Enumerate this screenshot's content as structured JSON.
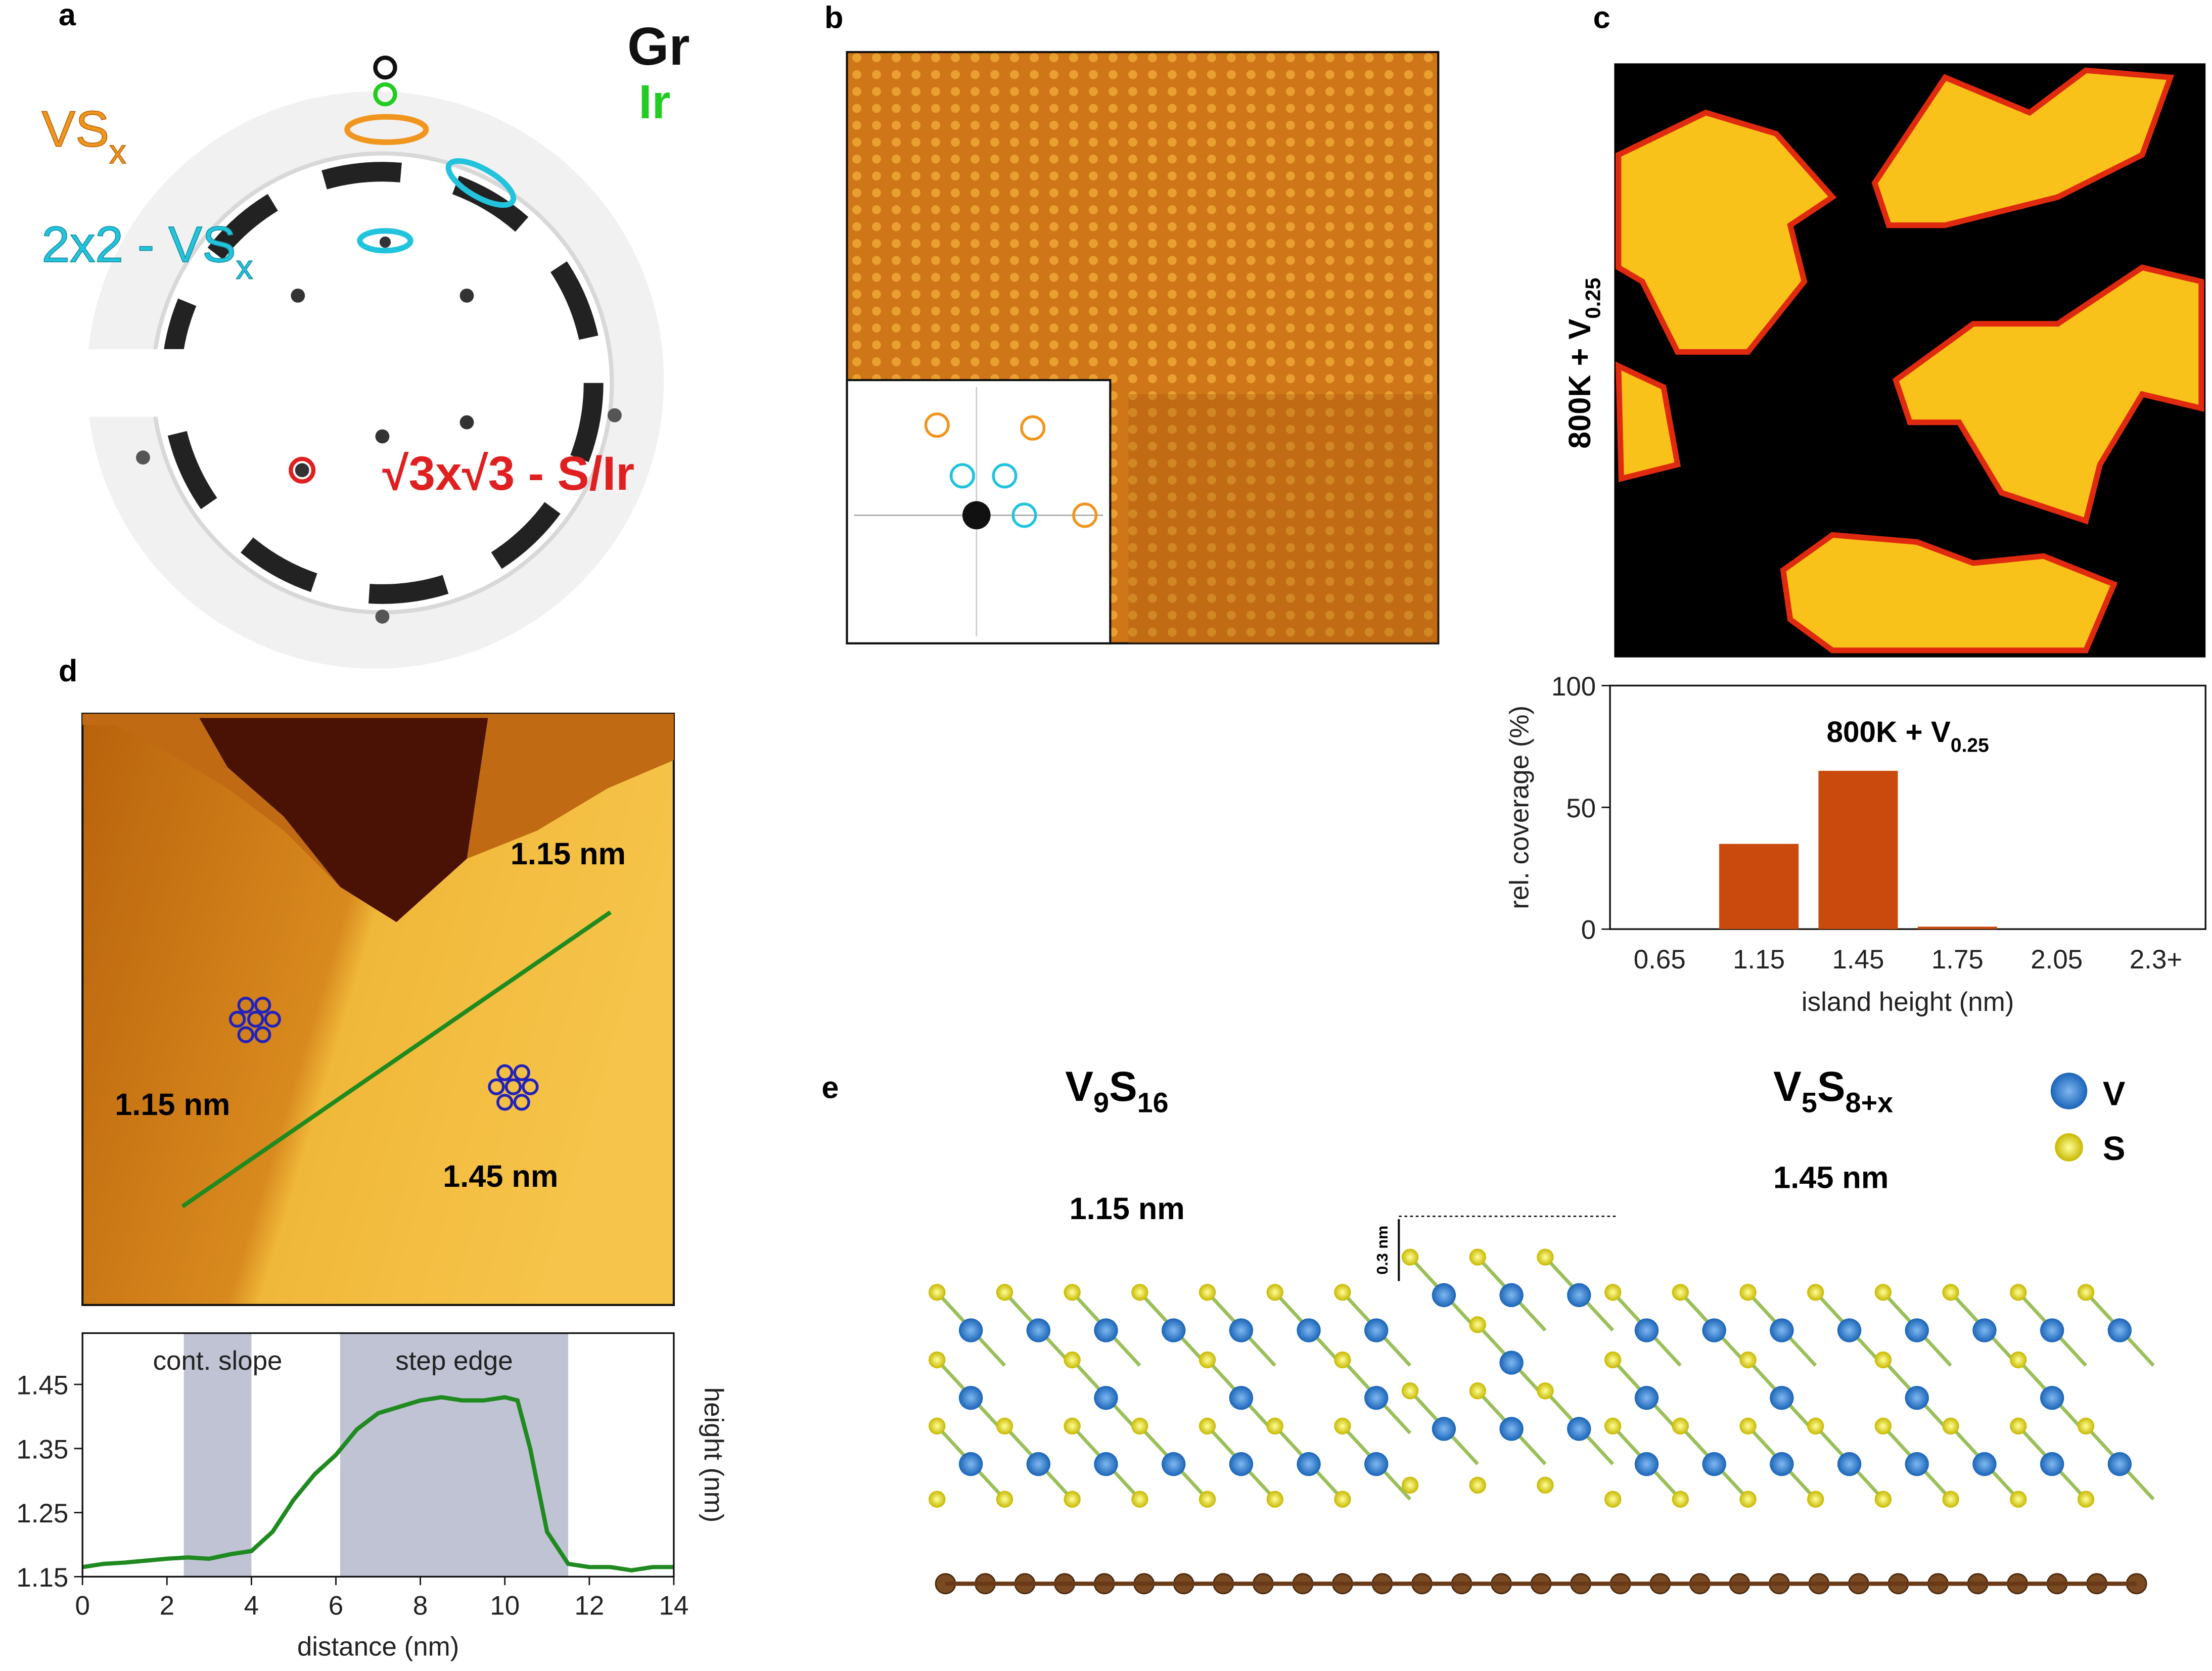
{
  "panels": {
    "a": "a",
    "b": "b",
    "c": "c",
    "d": "d",
    "e": "e"
  },
  "panel_a": {
    "gr": "Gr",
    "ir": "Ir",
    "vsx": {
      "main": "VS",
      "sub": "x"
    },
    "vs2x2": {
      "main": "2x2 - VS",
      "sub": "x"
    },
    "sqrt": "√3x√3 - S/Ir"
  },
  "panel_c": {
    "label": {
      "main": "800K + V",
      "sub": "0.25"
    }
  },
  "panel_d": {
    "h1": "1.15 nm",
    "h2": "1.45 nm",
    "h3": "1.15 nm"
  },
  "panel_e": {
    "left": {
      "a": "V",
      "a_sub": "9",
      "b": "S",
      "b_sub": "16"
    },
    "right": {
      "a": "V",
      "a_sub": "5",
      "b": "S",
      "b_sub": "8+x"
    },
    "left_height": "1.15 nm",
    "right_height": "1.45 nm",
    "step": "0.3 nm",
    "legend_v": "V",
    "legend_s": "S"
  },
  "chart_data": [
    {
      "type": "bar",
      "title": "800K + V",
      "title_sub": "0.25",
      "xlabel": "island height (nm)",
      "ylabel": "rel. coverage (%)",
      "categories": [
        "0.65",
        "1.15",
        "1.45",
        "1.75",
        "2.05",
        "2.3+"
      ],
      "values": [
        0,
        35,
        65,
        1,
        0,
        0
      ],
      "color": "#c94a0c",
      "ylim": [
        0,
        100
      ],
      "yticks": [
        0,
        50,
        100
      ]
    },
    {
      "type": "line",
      "xlabel": "distance (nm)",
      "ylabel": "height (nm)",
      "xlim": [
        0,
        14
      ],
      "xticks": [
        0,
        2,
        4,
        6,
        8,
        10,
        12,
        14
      ],
      "ylim": [
        1.15,
        1.53
      ],
      "yticks": [
        1.15,
        1.25,
        1.35,
        1.45
      ],
      "regions": [
        {
          "label": "cont. slope",
          "x": [
            2.4,
            4.0
          ]
        },
        {
          "label": "step edge",
          "x": [
            6.1,
            11.5
          ]
        }
      ],
      "series": [
        {
          "color": "#1f8a1f",
          "x": [
            0,
            0.5,
            1,
            1.5,
            2,
            2.5,
            3,
            3.5,
            4,
            4.5,
            5,
            5.5,
            6,
            6.5,
            7,
            7.5,
            8,
            8.5,
            9,
            9.5,
            10,
            10.3,
            10.6,
            11,
            11.5,
            12,
            12.5,
            13,
            13.5,
            14
          ],
          "values": [
            1.165,
            1.17,
            1.172,
            1.175,
            1.178,
            1.18,
            1.178,
            1.185,
            1.19,
            1.22,
            1.27,
            1.31,
            1.34,
            1.38,
            1.405,
            1.415,
            1.425,
            1.43,
            1.425,
            1.425,
            1.43,
            1.425,
            1.35,
            1.22,
            1.17,
            1.165,
            1.165,
            1.16,
            1.165,
            1.165
          ]
        }
      ]
    }
  ]
}
